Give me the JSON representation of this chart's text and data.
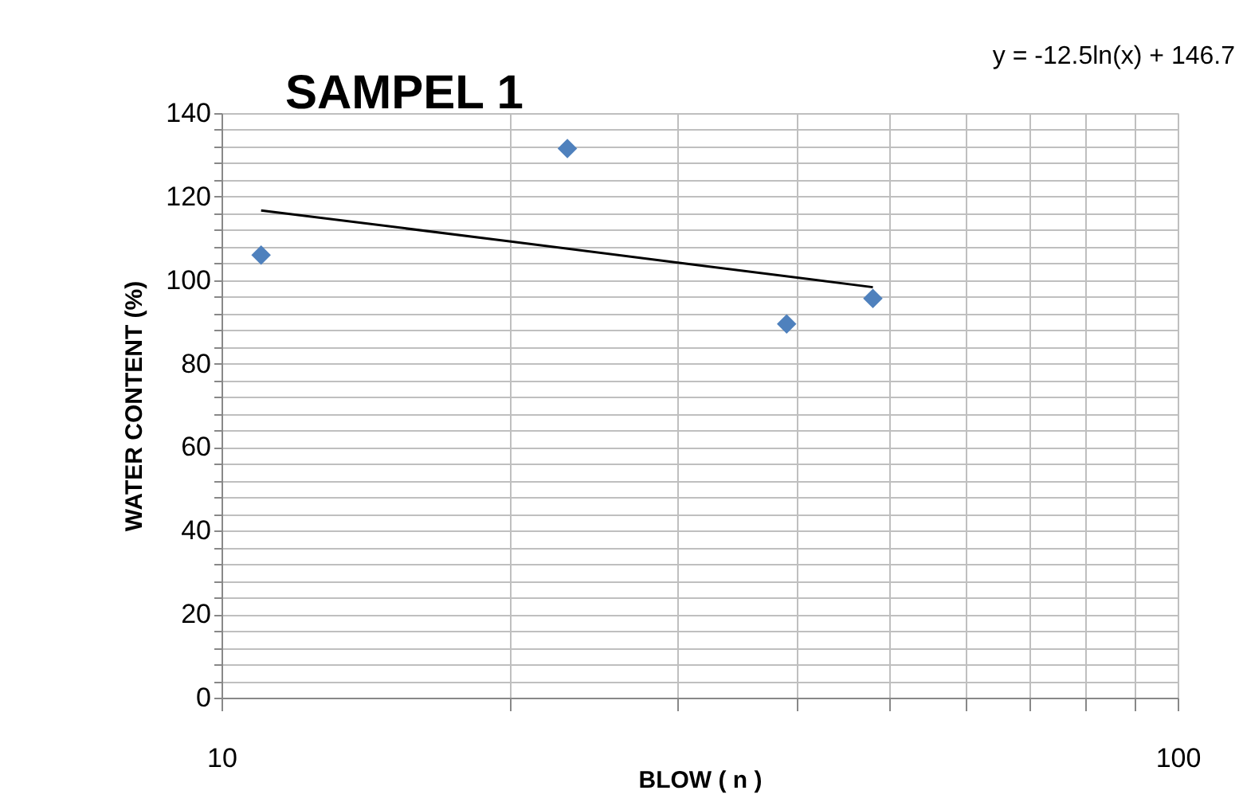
{
  "chart_data": {
    "type": "scatter",
    "title": "SAMPEL 1",
    "xlabel": "BLOW ( n )",
    "ylabel": "WATER CONTENT (%)",
    "log": "x",
    "grid": true,
    "marker": "diamond",
    "x": [
      11,
      23,
      39,
      48
    ],
    "series": [
      {
        "color": "#4f81bd",
        "values": [
          106,
          131.5,
          89.5,
          95.6
        ]
      },
      {
        "type": "line",
        "color": "#000000",
        "x": [
          11,
          20,
          30,
          48
        ],
        "values": [
          116.7,
          109.3,
          104.2,
          98.3
        ],
        "line_style": "solid",
        "marker": "none"
      }
    ],
    "xlim": [
      10,
      100
    ],
    "ylim": [
      0,
      140
    ],
    "xticks": [
      10,
      {
        "value": 20,
        "label": null
      },
      {
        "value": 30,
        "label": null
      },
      {
        "value": 40,
        "label": null
      },
      {
        "value": 50,
        "label": null
      },
      {
        "value": 60,
        "label": null
      },
      {
        "value": 70,
        "label": null
      },
      {
        "value": 80,
        "label": null
      },
      {
        "value": 90,
        "label": null
      },
      100
    ],
    "yticks": [
      0,
      {
        "value": 4,
        "label": null
      },
      {
        "value": 8,
        "label": null
      },
      {
        "value": 12,
        "label": null
      },
      {
        "value": 16,
        "label": null
      },
      20,
      {
        "value": 24,
        "label": null
      },
      {
        "value": 28,
        "label": null
      },
      {
        "value": 32,
        "label": null
      },
      {
        "value": 36,
        "label": null
      },
      40,
      {
        "value": 44,
        "label": null
      },
      {
        "value": 48,
        "label": null
      },
      {
        "value": 52,
        "label": null
      },
      {
        "value": 56,
        "label": null
      },
      60,
      {
        "value": 64,
        "label": null
      },
      {
        "value": 68,
        "label": null
      },
      {
        "value": 72,
        "label": null
      },
      {
        "value": 76,
        "label": null
      },
      80,
      {
        "value": 84,
        "label": null
      },
      {
        "value": 88,
        "label": null
      },
      {
        "value": 92,
        "label": null
      },
      {
        "value": 96,
        "label": null
      },
      100,
      {
        "value": 104,
        "label": null
      },
      {
        "value": 108,
        "label": null
      },
      {
        "value": 112,
        "label": null
      },
      {
        "value": 116,
        "label": null
      },
      120,
      {
        "value": 124,
        "label": null
      },
      {
        "value": 128,
        "label": null
      },
      {
        "value": 132,
        "label": null
      },
      {
        "value": 136,
        "label": null
      },
      140
    ],
    "annotations": [
      "y = -12.5ln(x) + 146.7"
    ]
  }
}
